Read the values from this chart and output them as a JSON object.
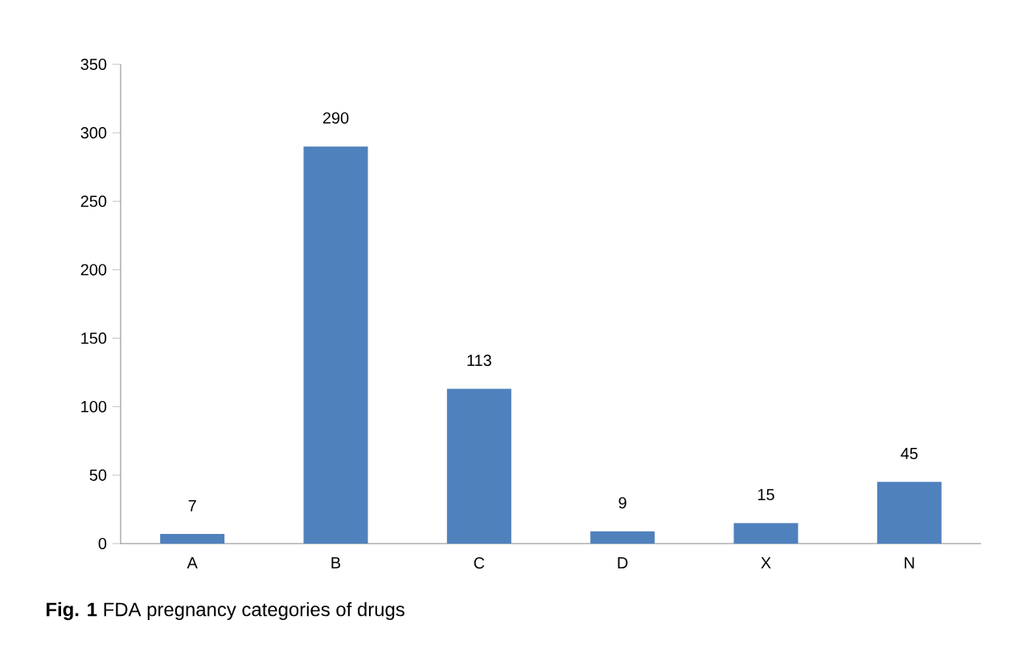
{
  "chart_data": {
    "type": "bar",
    "categories": [
      "A",
      "B",
      "C",
      "D",
      "X",
      "N"
    ],
    "values": [
      7,
      290,
      113,
      9,
      15,
      45
    ],
    "color": "#4f81bd",
    "ylim": [
      0,
      350
    ],
    "yticks": [
      0,
      50,
      100,
      150,
      200,
      250,
      300,
      350
    ],
    "data_labels": true,
    "grid": false,
    "annotations": [
      "**Fig. 1** FDA pregnancy categories of drugs"
    ]
  }
}
